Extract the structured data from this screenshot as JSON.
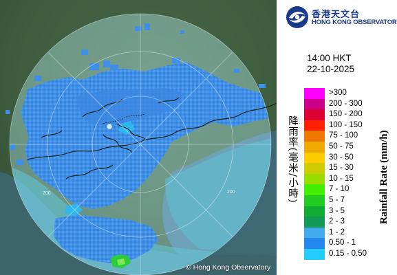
{
  "header": {
    "org_name_cn": "香港天文台",
    "org_name_en": "HONG KONG OBSERVATORY"
  },
  "timestamp": {
    "time": "14:00 HKT",
    "date": "22-10-2025"
  },
  "legend": {
    "title_cn": "降雨率(毫米/小時)",
    "title_en": "Rainfall Rate (mm/h)",
    "items": [
      {
        "label": ">300",
        "color": "#ff00ff"
      },
      {
        "label": "200 - 300",
        "color": "#cc0088"
      },
      {
        "label": "150 - 200",
        "color": "#dd0033"
      },
      {
        "label": "100 - 150",
        "color": "#ff2200"
      },
      {
        "label": "75 - 100",
        "color": "#ee7700"
      },
      {
        "label": "50 - 75",
        "color": "#eeaa00"
      },
      {
        "label": "30 - 50",
        "color": "#ffcc00"
      },
      {
        "label": "15 - 30",
        "color": "#cccc00"
      },
      {
        "label": "10 - 15",
        "color": "#99dd00"
      },
      {
        "label": "7 - 10",
        "color": "#44ee00"
      },
      {
        "label": "5 - 7",
        "color": "#22cc22"
      },
      {
        "label": "3 - 5",
        "color": "#11aa33"
      },
      {
        "label": "2 - 3",
        "color": "#119955"
      },
      {
        "label": "1 - 2",
        "color": "#44aaee"
      },
      {
        "label": "0.50 - 1",
        "color": "#2288ee"
      },
      {
        "label": "0.15 - 0.50",
        "color": "#22ccff"
      }
    ]
  },
  "map": {
    "range_ring_labels": [
      "200",
      "200"
    ],
    "copyright": "© Hong Kong Observatory"
  }
}
